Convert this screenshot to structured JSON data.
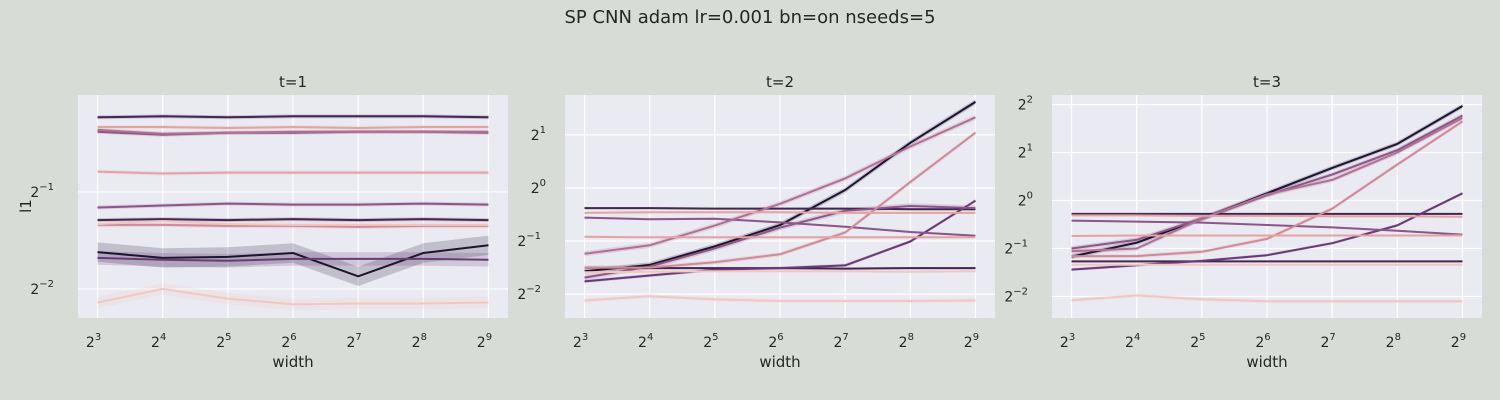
{
  "figure": {
    "suptitle": "SP CNN adam lr=0.001 bn=on nseeds=5"
  },
  "colors": {
    "figure_bg": "#d7ddd6",
    "axes_bg": "#eaeaf2",
    "grid": "#ffffff",
    "text": "#262626",
    "palette": [
      "#f1c8c1",
      "#e3a4a0",
      "#d08a98",
      "#b06f93",
      "#8e5687",
      "#6b3a76",
      "#44264f",
      "#1f1430"
    ]
  },
  "chart_data": [
    {
      "type": "line",
      "title": "t=1",
      "xlabel": "width",
      "ylabel": "l1",
      "x": [
        3,
        4,
        5,
        6,
        7,
        8,
        9
      ],
      "x_ticks": [
        3,
        4,
        5,
        6,
        7,
        8,
        9
      ],
      "x_tick_base": "2",
      "x_scale": "log2",
      "y_scale": "log2",
      "y_ticks": [
        -2,
        -1
      ],
      "ylim": [
        -2.3,
        0.0
      ],
      "xlim": [
        2.7,
        9.3
      ],
      "grid": true,
      "series": [
        {
          "color": "#1f1430",
          "values": [
            -1.62,
            -1.68,
            -1.67,
            -1.63,
            -1.87,
            -1.63,
            -1.55
          ],
          "band": 0.1
        },
        {
          "color": "#44264f",
          "values": [
            -1.29,
            -1.28,
            -1.29,
            -1.28,
            -1.29,
            -1.28,
            -1.29
          ],
          "band": 0.02
        },
        {
          "color": "#44264f",
          "values": [
            -0.23,
            -0.22,
            -0.23,
            -0.22,
            -0.22,
            -0.22,
            -0.23
          ],
          "band": 0.02
        },
        {
          "color": "#6b3a76",
          "values": [
            -1.68,
            -1.7,
            -1.71,
            -1.69,
            -1.69,
            -1.69,
            -1.7
          ],
          "band": 0.07
        },
        {
          "color": "#8e5687",
          "values": [
            -1.16,
            -1.14,
            -1.12,
            -1.13,
            -1.13,
            -1.12,
            -1.13
          ],
          "band": 0.02
        },
        {
          "color": "#8e5687",
          "values": [
            -0.38,
            -0.41,
            -0.39,
            -0.39,
            -0.38,
            -0.38,
            -0.39
          ],
          "band": 0.02
        },
        {
          "color": "#b06f93",
          "values": [
            -0.36,
            -0.4,
            -0.39,
            -0.38,
            -0.38,
            -0.38,
            -0.38
          ],
          "band": 0.02
        },
        {
          "color": "#d08a98",
          "values": [
            -1.34,
            -1.34,
            -1.35,
            -1.35,
            -1.36,
            -1.35,
            -1.35
          ],
          "band": 0.02
        },
        {
          "color": "#e3a4a0",
          "values": [
            -0.79,
            -0.81,
            -0.8,
            -0.8,
            -0.8,
            -0.8,
            -0.8
          ],
          "band": 0.02
        },
        {
          "color": "#e3a4a0",
          "values": [
            -0.33,
            -0.33,
            -0.34,
            -0.33,
            -0.34,
            -0.33,
            -0.33
          ],
          "band": 0.02
        },
        {
          "color": "#f1c8c1",
          "values": [
            -1.33,
            -1.3,
            -1.33,
            -1.34,
            -1.34,
            -1.34,
            -1.34
          ],
          "band": 0.04
        },
        {
          "color": "#f1c8c1",
          "values": [
            -2.14,
            -2.0,
            -2.1,
            -2.16,
            -2.15,
            -2.15,
            -2.14
          ],
          "band": 0.06
        }
      ]
    },
    {
      "type": "line",
      "title": "t=2",
      "xlabel": "width",
      "ylabel": "",
      "x": [
        3,
        4,
        5,
        6,
        7,
        8,
        9
      ],
      "x_ticks": [
        3,
        4,
        5,
        6,
        7,
        8,
        9
      ],
      "x_tick_base": "2",
      "x_scale": "log2",
      "y_scale": "log2",
      "y_ticks": [
        -2,
        -1,
        0,
        1
      ],
      "ylim": [
        -2.45,
        1.75
      ],
      "xlim": [
        2.7,
        9.3
      ],
      "grid": true,
      "series": [
        {
          "color": "#1f1430",
          "values": [
            -1.57,
            -1.45,
            -1.1,
            -0.7,
            -0.04,
            0.85,
            1.62
          ],
          "band": 0.05
        },
        {
          "color": "#44264f",
          "values": [
            -0.38,
            -0.38,
            -0.39,
            -0.39,
            -0.39,
            -0.4,
            -0.4
          ],
          "band": 0.02
        },
        {
          "color": "#44264f",
          "values": [
            -1.5,
            -1.51,
            -1.51,
            -1.51,
            -1.52,
            -1.51,
            -1.51
          ],
          "band": 0.02
        },
        {
          "color": "#6b3a76",
          "values": [
            -1.76,
            -1.65,
            -1.54,
            -1.51,
            -1.46,
            -1.01,
            -0.24
          ],
          "band": 0.03
        },
        {
          "color": "#8e5687",
          "values": [
            -1.69,
            -1.48,
            -1.14,
            -0.75,
            -0.43,
            -0.34,
            -0.38
          ],
          "band": 0.05
        },
        {
          "color": "#8e5687",
          "values": [
            -0.56,
            -0.59,
            -0.58,
            -0.65,
            -0.73,
            -0.83,
            -0.9
          ],
          "band": 0.02
        },
        {
          "color": "#b06f93",
          "values": [
            -1.24,
            -1.08,
            -0.71,
            -0.3,
            0.18,
            0.78,
            1.33
          ],
          "band": 0.05
        },
        {
          "color": "#d08a98",
          "values": [
            -1.5,
            -1.5,
            -1.4,
            -1.25,
            -0.84,
            0.11,
            1.04
          ],
          "band": 0.04
        },
        {
          "color": "#e3a4a0",
          "values": [
            -0.92,
            -0.93,
            -0.93,
            -0.93,
            -0.93,
            -0.93,
            -0.93
          ],
          "band": 0.02
        },
        {
          "color": "#e3a4a0",
          "values": [
            -0.47,
            -0.46,
            -0.46,
            -0.46,
            -0.47,
            -0.47,
            -0.47
          ],
          "band": 0.02
        },
        {
          "color": "#f1c8c1",
          "values": [
            -1.59,
            -1.58,
            -1.57,
            -1.57,
            -1.57,
            -1.58,
            -1.57
          ],
          "band": 0.02
        },
        {
          "color": "#f1c8c1",
          "values": [
            -2.12,
            -2.04,
            -2.1,
            -2.13,
            -2.13,
            -2.13,
            -2.12
          ],
          "band": 0.04
        }
      ]
    },
    {
      "type": "line",
      "title": "t=3",
      "xlabel": "width",
      "ylabel": "",
      "x": [
        3,
        4,
        5,
        6,
        7,
        8,
        9
      ],
      "x_ticks": [
        3,
        4,
        5,
        6,
        7,
        8,
        9
      ],
      "x_tick_base": "2",
      "x_scale": "log2",
      "y_scale": "log2",
      "y_ticks": [
        -2,
        -1,
        0,
        1,
        2
      ],
      "ylim": [
        -2.45,
        2.2
      ],
      "xlim": [
        2.7,
        9.3
      ],
      "grid": true,
      "series": [
        {
          "color": "#1f1430",
          "values": [
            -1.17,
            -0.88,
            -0.38,
            0.15,
            0.68,
            1.18,
            1.97
          ],
          "band": 0.05
        },
        {
          "color": "#44264f",
          "values": [
            -0.28,
            -0.28,
            -0.28,
            -0.28,
            -0.28,
            -0.28,
            -0.28
          ],
          "band": 0.02
        },
        {
          "color": "#44264f",
          "values": [
            -1.27,
            -1.27,
            -1.27,
            -1.27,
            -1.27,
            -1.27,
            -1.27
          ],
          "band": 0.02
        },
        {
          "color": "#6b3a76",
          "values": [
            -1.44,
            -1.35,
            -1.26,
            -1.14,
            -0.89,
            -0.52,
            0.15
          ],
          "band": 0.03
        },
        {
          "color": "#8e5687",
          "values": [
            -1.0,
            -0.82,
            -0.38,
            0.11,
            0.54,
            1.05,
            1.77
          ],
          "band": 0.05
        },
        {
          "color": "#8e5687",
          "values": [
            -0.42,
            -0.44,
            -0.46,
            -0.51,
            -0.56,
            -0.63,
            -0.71
          ],
          "band": 0.02
        },
        {
          "color": "#b06f93",
          "values": [
            -1.06,
            -1.0,
            -0.38,
            0.13,
            0.43,
            1.0,
            1.72
          ],
          "band": 0.05
        },
        {
          "color": "#d08a98",
          "values": [
            -1.16,
            -1.16,
            -1.07,
            -0.8,
            -0.17,
            0.75,
            1.65
          ],
          "band": 0.04
        },
        {
          "color": "#e3a4a0",
          "values": [
            -0.74,
            -0.73,
            -0.73,
            -0.73,
            -0.73,
            -0.73,
            -0.73
          ],
          "band": 0.02
        },
        {
          "color": "#e3a4a0",
          "values": [
            -0.31,
            -0.31,
            -0.32,
            -0.32,
            -0.33,
            -0.33,
            -0.34
          ],
          "band": 0.02
        },
        {
          "color": "#f1c8c1",
          "values": [
            -1.34,
            -1.34,
            -1.34,
            -1.34,
            -1.34,
            -1.34,
            -1.34
          ],
          "band": 0.02
        },
        {
          "color": "#f1c8c1",
          "values": [
            -2.08,
            -1.98,
            -2.06,
            -2.1,
            -2.1,
            -2.1,
            -2.1
          ],
          "band": 0.04
        }
      ]
    }
  ]
}
